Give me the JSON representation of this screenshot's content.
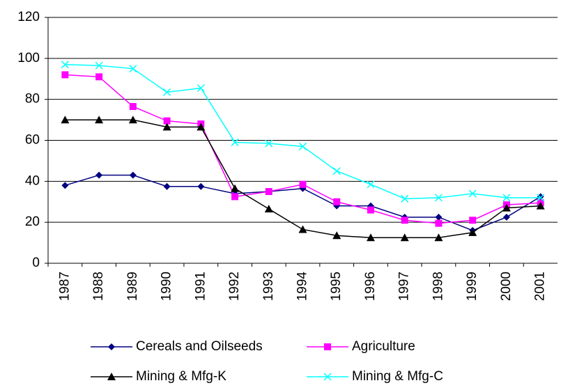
{
  "chart_data": {
    "type": "line",
    "categories": [
      "1987",
      "1988",
      "1989",
      "1990",
      "1991",
      "1992",
      "1993",
      "1994",
      "1995",
      "1996",
      "1997",
      "1998",
      "1999",
      "2000",
      "2001"
    ],
    "series": [
      {
        "name": "Cereals and Oilseeds",
        "color": "#000080",
        "marker": "diamond",
        "values": [
          38,
          43,
          43,
          37.5,
          37.5,
          34,
          35,
          36.5,
          28,
          28,
          22.5,
          22.5,
          16,
          22.5,
          32.5
        ]
      },
      {
        "name": "Agriculture",
        "color": "#ff00ff",
        "marker": "square",
        "values": [
          92,
          91,
          76.5,
          69.5,
          68,
          32.5,
          35,
          38.5,
          30,
          26,
          21,
          19.5,
          21,
          28.5,
          29.5
        ]
      },
      {
        "name": "Mining & Mfg-K",
        "color": "#000000",
        "marker": "triangle",
        "values": [
          70,
          70,
          70,
          66.5,
          66.5,
          36.5,
          26.5,
          16.5,
          13.5,
          12.5,
          12.5,
          12.5,
          15,
          27,
          28
        ]
      },
      {
        "name": "Mining & Mfg-C",
        "color": "#00ffff",
        "marker": "x",
        "values": [
          97,
          96.5,
          95,
          83.5,
          85.5,
          59,
          58.5,
          57,
          45,
          38.5,
          31.5,
          32,
          34,
          32,
          32
        ]
      }
    ],
    "ylim": [
      0,
      120
    ],
    "yticks": [
      0,
      20,
      40,
      60,
      80,
      100,
      120
    ],
    "grid": true,
    "legend": "bottom"
  }
}
